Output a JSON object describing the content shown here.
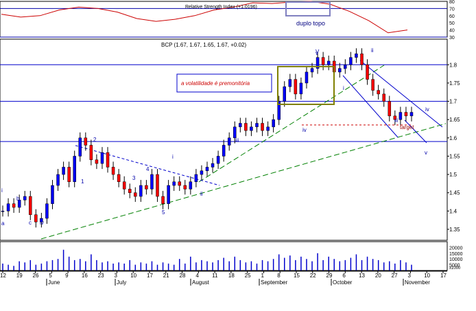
{
  "chart_data": [
    {
      "type": "line",
      "panel": "rsi",
      "title": "Relative Strength Index (+1.0196)",
      "annotation": "duplo topo",
      "ylim": [
        30,
        80
      ],
      "y_ticks": [
        30,
        40,
        50,
        60,
        70,
        80
      ],
      "reference_lines": [
        30,
        70
      ],
      "color": "#cc0000",
      "x": [
        "Jun 12",
        "Jun 19",
        "Jun 26",
        "Jul 3",
        "Jul 10",
        "Jul 17",
        "Jul 24",
        "Jul 31",
        "Aug 7",
        "Aug 14",
        "Aug 21",
        "Aug 28",
        "Sep 4",
        "Sep 11",
        "Sep 18",
        "Sep 25",
        "Oct 2",
        "Oct 9",
        "Oct 16",
        "Oct 23",
        "Oct 30",
        "Nov 3"
      ],
      "values": [
        62,
        58,
        60,
        68,
        72,
        70,
        65,
        56,
        52,
        55,
        60,
        68,
        72,
        78,
        77,
        79,
        80,
        76,
        66,
        53,
        36,
        40
      ]
    },
    {
      "type": "candlestick",
      "panel": "price",
      "title": "BCP (1.67, 1.67, 1.65, 1.67, +0.02)",
      "ylim": [
        1.32,
        1.87
      ],
      "y_ticks": [
        1.35,
        1.4,
        1.45,
        1.5,
        1.55,
        1.6,
        1.65,
        1.7,
        1.75,
        1.8
      ],
      "up_color": "#0000ff",
      "down_color": "#ff0000",
      "x": [
        "May 15",
        "May 17",
        "May 19",
        "May 22",
        "May 24",
        "May 26",
        "May 29",
        "May 31",
        "Jun 2",
        "Jun 5",
        "Jun 7",
        "Jun 9",
        "Jun 12",
        "Jun 14",
        "Jun 16",
        "Jun 19",
        "Jun 21",
        "Jun 23",
        "Jun 26",
        "Jun 28",
        "Jun 30",
        "Jul 3",
        "Jul 5",
        "Jul 7",
        "Jul 10",
        "Jul 12",
        "Jul 14",
        "Jul 17",
        "Jul 19",
        "Jul 21",
        "Jul 24",
        "Jul 26",
        "Jul 28",
        "Jul 31",
        "Aug 2",
        "Aug 4",
        "Aug 7",
        "Aug 9",
        "Aug 11",
        "Aug 14",
        "Aug 16",
        "Aug 18",
        "Aug 21",
        "Aug 23",
        "Aug 25",
        "Aug 28",
        "Aug 30",
        "Sep 1",
        "Sep 4",
        "Sep 6",
        "Sep 8",
        "Sep 11",
        "Sep 13",
        "Sep 15",
        "Sep 18",
        "Sep 20",
        "Sep 22",
        "Sep 25",
        "Sep 27",
        "Sep 29",
        "Oct 2",
        "Oct 4",
        "Oct 6",
        "Oct 9",
        "Oct 11",
        "Oct 13",
        "Oct 16",
        "Oct 18",
        "Oct 20",
        "Oct 23",
        "Oct 25",
        "Oct 27",
        "Oct 30",
        "Nov 1",
        "Nov 3"
      ],
      "close": [
        1.4,
        1.42,
        1.41,
        1.43,
        1.44,
        1.39,
        1.37,
        1.38,
        1.42,
        1.47,
        1.5,
        1.52,
        1.48,
        1.55,
        1.6,
        1.58,
        1.54,
        1.53,
        1.56,
        1.52,
        1.5,
        1.48,
        1.46,
        1.45,
        1.44,
        1.47,
        1.46,
        1.5,
        1.44,
        1.42,
        1.47,
        1.48,
        1.47,
        1.46,
        1.48,
        1.5,
        1.51,
        1.52,
        1.53,
        1.55,
        1.58,
        1.6,
        1.63,
        1.64,
        1.62,
        1.63,
        1.64,
        1.62,
        1.63,
        1.65,
        1.7,
        1.74,
        1.76,
        1.72,
        1.75,
        1.78,
        1.79,
        1.82,
        1.8,
        1.81,
        1.78,
        1.79,
        1.8,
        1.82,
        1.83,
        1.8,
        1.76,
        1.73,
        1.72,
        1.7,
        1.66,
        1.65,
        1.67,
        1.66,
        1.67
      ],
      "volume": [
        6000,
        5000,
        4000,
        8000,
        7000,
        9000,
        5000,
        6000,
        8000,
        9000,
        10000,
        18000,
        12000,
        9000,
        10000,
        8000,
        14000,
        9000,
        7000,
        8000,
        6000,
        7000,
        6000,
        9000,
        5000,
        7000,
        6000,
        8000,
        5000,
        7000,
        6000,
        5000,
        10000,
        6000,
        12000,
        7000,
        9000,
        8000,
        7000,
        9000,
        11000,
        8000,
        12000,
        9000,
        7000,
        8000,
        6000,
        9000,
        8000,
        10000,
        14000,
        11000,
        13000,
        9000,
        12000,
        10000,
        8000,
        15000,
        9000,
        12000,
        10000,
        8000,
        9000,
        11000,
        14000,
        9000,
        12000,
        10000,
        9000,
        7000,
        8000,
        6000,
        9000,
        7000,
        5000
      ],
      "volume_ylim": [
        0,
        25000
      ],
      "volume_ticks": [
        "5000",
        "10000",
        "15000",
        "20000"
      ],
      "volume_unit": "x1000",
      "date_axis_numbers": [
        "12",
        "19",
        "26",
        "5",
        "9",
        "16",
        "23",
        "3",
        "10",
        "17",
        "21",
        "28",
        "4",
        "11",
        "18",
        "25",
        "1",
        "8",
        "15",
        "22",
        "29",
        "6",
        "13",
        "20",
        "27",
        "3",
        "10",
        "17"
      ],
      "date_axis_months": [
        "June",
        "July",
        "August",
        "September",
        "October",
        "November"
      ],
      "horizontal_levels": [
        1.8,
        1.7,
        1.59
      ],
      "wave_labels": [
        "i",
        "b",
        "c",
        "iv",
        "a",
        "ii",
        "v",
        "2",
        "1",
        "3",
        "4",
        "5",
        "i",
        "ii",
        "iii",
        "iv",
        "V",
        "ii",
        "i",
        "iii",
        "iv",
        "v",
        "target"
      ],
      "annotation_box": "a volatilidade é premonitória"
    }
  ]
}
